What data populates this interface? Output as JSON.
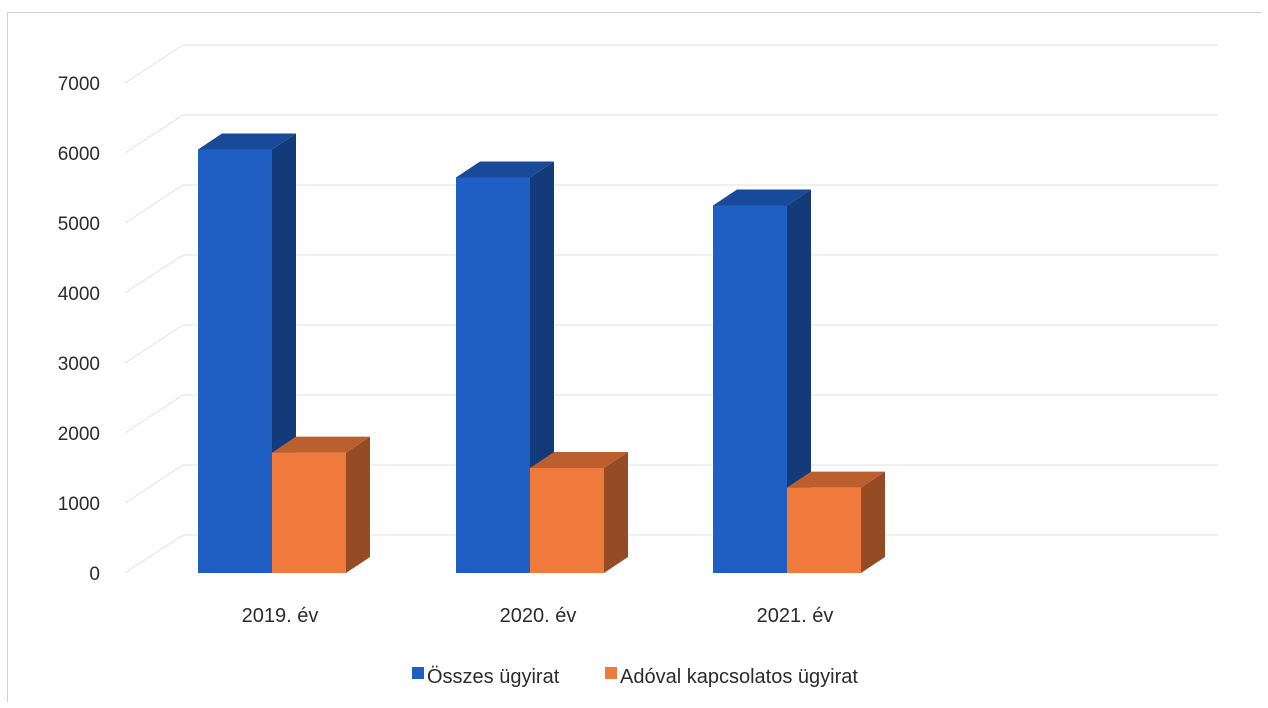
{
  "chart_data": {
    "type": "bar",
    "title": "",
    "xlabel": "",
    "ylabel": "",
    "categories": [
      "2019. év",
      "2020. év",
      "2021. év"
    ],
    "series": [
      {
        "name": "Összes ügyirat",
        "values": [
          6050,
          5650,
          5250
        ],
        "color": "#1f5fc4"
      },
      {
        "name": "Adóval kapcsolatos ügyirat",
        "values": [
          1720,
          1500,
          1220
        ],
        "color": "#f07a3c"
      }
    ],
    "ylim": [
      0,
      7000
    ],
    "yticks": [
      0,
      1000,
      2000,
      3000,
      4000,
      5000,
      6000,
      7000
    ],
    "grid": true,
    "legend_position": "bottom",
    "style": "3d-column"
  }
}
